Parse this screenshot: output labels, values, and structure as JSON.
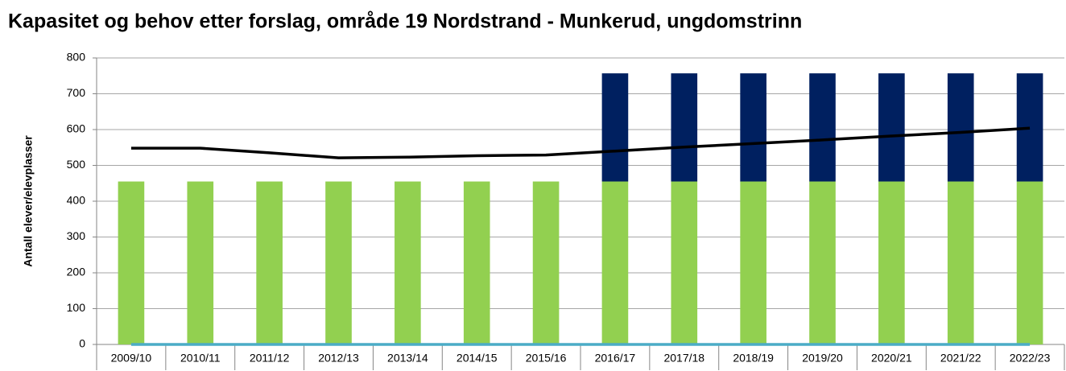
{
  "chart_data": {
    "type": "bar",
    "stacked": true,
    "title": "Kapasitet og behov etter forslag, område 19 Nordstrand - Munkerud, ungdomstrinn",
    "y_label": "Antall elever/elevplasser",
    "categories": [
      "2009/10",
      "2010/11",
      "2011/12",
      "2012/13",
      "2013/14",
      "2014/15",
      "2015/16",
      "2016/17",
      "2017/18",
      "2018/19",
      "2019/20",
      "2020/21",
      "2021/22",
      "2022/23"
    ],
    "series": [
      {
        "type": "bar",
        "color": "#92d050",
        "values": [
          455,
          455,
          455,
          455,
          455,
          455,
          455,
          455,
          455,
          455,
          455,
          455,
          455,
          455
        ]
      },
      {
        "type": "bar",
        "color": "#002060",
        "values": [
          0,
          0,
          0,
          0,
          0,
          0,
          0,
          302,
          302,
          302,
          302,
          302,
          302,
          302
        ]
      },
      {
        "type": "line",
        "color": "#000000",
        "values": [
          548,
          548,
          535,
          521,
          523,
          527,
          529,
          540,
          551,
          561,
          571,
          582,
          592,
          604
        ]
      },
      {
        "type": "line",
        "color": "#4bacc6",
        "values": [
          0,
          0,
          0,
          0,
          0,
          0,
          0,
          0,
          0,
          0,
          0,
          0,
          0,
          0
        ]
      }
    ],
    "ylim": [
      0,
      800
    ],
    "yticks": [
      0,
      100,
      200,
      300,
      400,
      500,
      600,
      700,
      800
    ],
    "grid": true
  }
}
